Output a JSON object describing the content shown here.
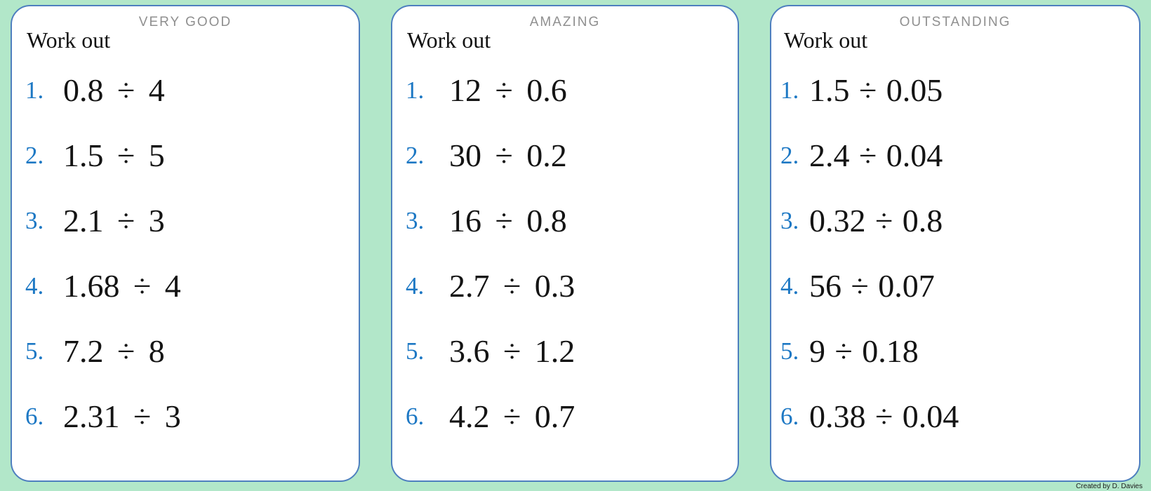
{
  "colors": {
    "background": "#b2e7c9",
    "card_border": "#4e7fbf",
    "problem_number": "#1d78c4",
    "card_title_text": "#8f8f8f"
  },
  "cards": [
    {
      "title": "VERY GOOD",
      "prompt": "Work out",
      "problems": [
        {
          "label": "1.",
          "expression": "0.8 ÷ 4"
        },
        {
          "label": "2.",
          "expression": "1.5 ÷ 5"
        },
        {
          "label": "3.",
          "expression": "2.1 ÷ 3"
        },
        {
          "label": "4.",
          "expression": "1.68 ÷ 4"
        },
        {
          "label": "5.",
          "expression": "7.2 ÷ 8"
        },
        {
          "label": "6.",
          "expression": "2.31 ÷ 3"
        }
      ]
    },
    {
      "title": "AMAZING",
      "prompt": "Work out",
      "problems": [
        {
          "label": "1.",
          "expression": "12 ÷ 0.6"
        },
        {
          "label": "2.",
          "expression": "30 ÷ 0.2"
        },
        {
          "label": "3.",
          "expression": "16 ÷ 0.8"
        },
        {
          "label": "4.",
          "expression": "2.7 ÷ 0.3"
        },
        {
          "label": "5.",
          "expression": "3.6 ÷ 1.2"
        },
        {
          "label": "6.",
          "expression": "4.2 ÷ 0.7"
        }
      ]
    },
    {
      "title": "OUTSTANDING",
      "prompt": "Work out",
      "problems": [
        {
          "label": "1.",
          "expression": "1.5 ÷ 0.05"
        },
        {
          "label": "2.",
          "expression": "2.4 ÷ 0.04"
        },
        {
          "label": "3.",
          "expression": "0.32 ÷ 0.8"
        },
        {
          "label": "4.",
          "expression": "56 ÷ 0.07"
        },
        {
          "label": "5.",
          "expression": "9 ÷ 0.18"
        },
        {
          "label": "6.",
          "expression": "0.38 ÷ 0.04"
        }
      ]
    }
  ],
  "credit": "Created by D. Davies"
}
